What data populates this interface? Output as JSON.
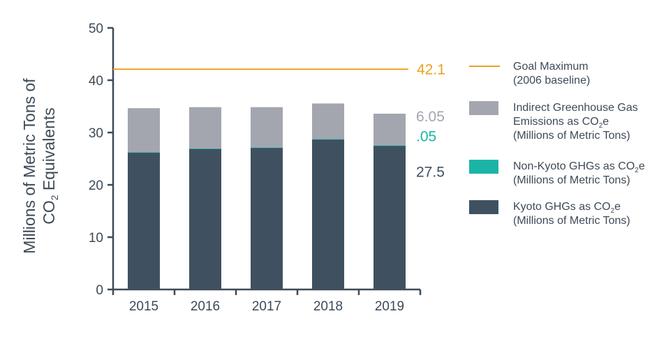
{
  "chart_data": {
    "type": "bar",
    "stacked": true,
    "categories": [
      "2015",
      "2016",
      "2017",
      "2018",
      "2019"
    ],
    "ylim": [
      0,
      50
    ],
    "yticks": [
      0,
      10,
      20,
      30,
      40,
      50
    ],
    "ylabel_line1": "Millions of Metric Tons of",
    "ylabel_line2_pre": "CO",
    "ylabel_line2_sub": "2",
    "ylabel_line2_post": " Equivalents",
    "series": [
      {
        "name": "Kyoto GHGs",
        "color": "#3f5160",
        "values": [
          26.2,
          26.9,
          27.1,
          28.7,
          27.5
        ]
      },
      {
        "name": "Non-Kyoto GHGs",
        "color": "#1bb5a7",
        "values": [
          0.05,
          0.05,
          0.05,
          0.05,
          0.05
        ]
      },
      {
        "name": "Indirect Greenhouse Gas Emissions",
        "color": "#a3a6ae",
        "values": [
          8.4,
          7.9,
          7.7,
          6.8,
          6.05
        ]
      }
    ],
    "goal_line": {
      "value": 42.1,
      "color": "#e8a320",
      "label": "42.1"
    },
    "value_labels": [
      {
        "text": "6.05",
        "color": "#a3a6ae",
        "y_value": 33.1
      },
      {
        "text": ".05",
        "color": "#1bb5a7",
        "y_value": 29.3
      },
      {
        "text": "27.5",
        "color": "#3f5160",
        "y_value": 22.5
      }
    ],
    "legend": [
      {
        "kind": "line",
        "color": "#e8a320",
        "lines": [
          {
            "pre": "Goal Maximum"
          },
          {
            "pre": "(2006 baseline)"
          }
        ]
      },
      {
        "kind": "box",
        "color": "#a3a6ae",
        "lines": [
          {
            "pre": "Indirect Greenhouse Gas"
          },
          {
            "pre": "Emissions as CO",
            "sub": "2",
            "post": "e"
          },
          {
            "pre": "(Millions of Metric Tons)"
          }
        ]
      },
      {
        "kind": "box",
        "color": "#1bb5a7",
        "lines": [
          {
            "pre": "Non-Kyoto GHGs as CO",
            "sub": "2",
            "post": "e"
          },
          {
            "pre": "(Millions of Metric Tons)"
          }
        ]
      },
      {
        "kind": "box",
        "color": "#3f5160",
        "lines": [
          {
            "pre": "Kyoto GHGs as CO",
            "sub": "2",
            "post": "e"
          },
          {
            "pre": "(Millions of Metric Tons)"
          }
        ]
      }
    ]
  }
}
